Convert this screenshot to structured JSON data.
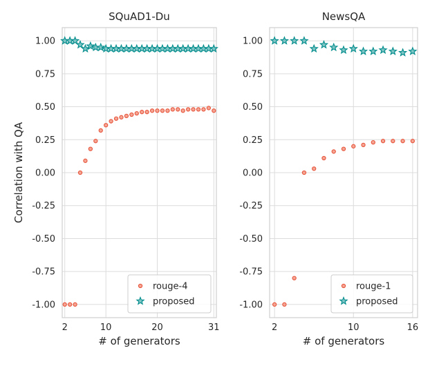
{
  "colors": {
    "rouge": "#e8533a",
    "proposed": "#008b8b",
    "grid": "#dcdcdc",
    "frame": "#cfcfcf"
  },
  "chart_data": [
    {
      "type": "scatter",
      "title": "SQuAD1-Du",
      "xlabel": "# of generators",
      "ylabel": "Correlation with QA",
      "xlim": [
        1.5,
        31.5
      ],
      "ylim": [
        -1.1,
        1.1
      ],
      "xticks": [
        2,
        10,
        20,
        31
      ],
      "yticks": [
        1.0,
        0.75,
        0.5,
        0.25,
        0.0,
        -0.25,
        -0.5,
        -0.75,
        -1.0
      ],
      "grid": true,
      "legend_position": "bottom-right",
      "series": [
        {
          "name": "rouge-4",
          "marker": "circle",
          "x": [
            2,
            3,
            4,
            5,
            6,
            7,
            8,
            9,
            10,
            11,
            12,
            13,
            14,
            15,
            16,
            17,
            18,
            19,
            20,
            21,
            22,
            23,
            24,
            25,
            26,
            27,
            28,
            29,
            30,
            31
          ],
          "y": [
            -1.0,
            -1.0,
            -1.0,
            0.0,
            0.09,
            0.18,
            0.24,
            0.32,
            0.36,
            0.39,
            0.41,
            0.42,
            0.43,
            0.44,
            0.45,
            0.46,
            0.46,
            0.47,
            0.47,
            0.47,
            0.47,
            0.48,
            0.48,
            0.47,
            0.48,
            0.48,
            0.48,
            0.48,
            0.49,
            0.47
          ]
        },
        {
          "name": "proposed",
          "marker": "star",
          "x": [
            2,
            3,
            4,
            5,
            6,
            7,
            8,
            9,
            10,
            11,
            12,
            13,
            14,
            15,
            16,
            17,
            18,
            19,
            20,
            21,
            22,
            23,
            24,
            25,
            26,
            27,
            28,
            29,
            30,
            31
          ],
          "y": [
            1.0,
            1.0,
            1.0,
            0.97,
            0.94,
            0.96,
            0.95,
            0.95,
            0.94,
            0.94,
            0.94,
            0.94,
            0.94,
            0.94,
            0.94,
            0.94,
            0.94,
            0.94,
            0.94,
            0.94,
            0.94,
            0.94,
            0.94,
            0.94,
            0.94,
            0.94,
            0.94,
            0.94,
            0.94,
            0.94
          ]
        }
      ]
    },
    {
      "type": "scatter",
      "title": "NewsQA",
      "xlabel": "# of generators",
      "ylabel": "",
      "xlim": [
        1.5,
        16.5
      ],
      "ylim": [
        -1.1,
        1.1
      ],
      "xticks": [
        2,
        10,
        16
      ],
      "yticks": [
        1.0,
        0.75,
        0.5,
        0.25,
        0.0,
        -0.25,
        -0.5,
        -0.75,
        -1.0
      ],
      "grid": true,
      "legend_position": "bottom-right",
      "series": [
        {
          "name": "rouge-1",
          "marker": "circle",
          "x": [
            2,
            3,
            4,
            5,
            6,
            7,
            8,
            9,
            10,
            11,
            12,
            13,
            14,
            15,
            16
          ],
          "y": [
            -1.0,
            -1.0,
            -0.8,
            0.0,
            0.03,
            0.11,
            0.16,
            0.18,
            0.2,
            0.21,
            0.23,
            0.24,
            0.24,
            0.24,
            0.24
          ]
        },
        {
          "name": "proposed",
          "marker": "star",
          "x": [
            2,
            3,
            4,
            5,
            6,
            7,
            8,
            9,
            10,
            11,
            12,
            13,
            14,
            15,
            16
          ],
          "y": [
            1.0,
            1.0,
            1.0,
            1.0,
            0.94,
            0.97,
            0.95,
            0.93,
            0.94,
            0.92,
            0.92,
            0.93,
            0.92,
            0.91,
            0.92
          ]
        }
      ]
    }
  ]
}
